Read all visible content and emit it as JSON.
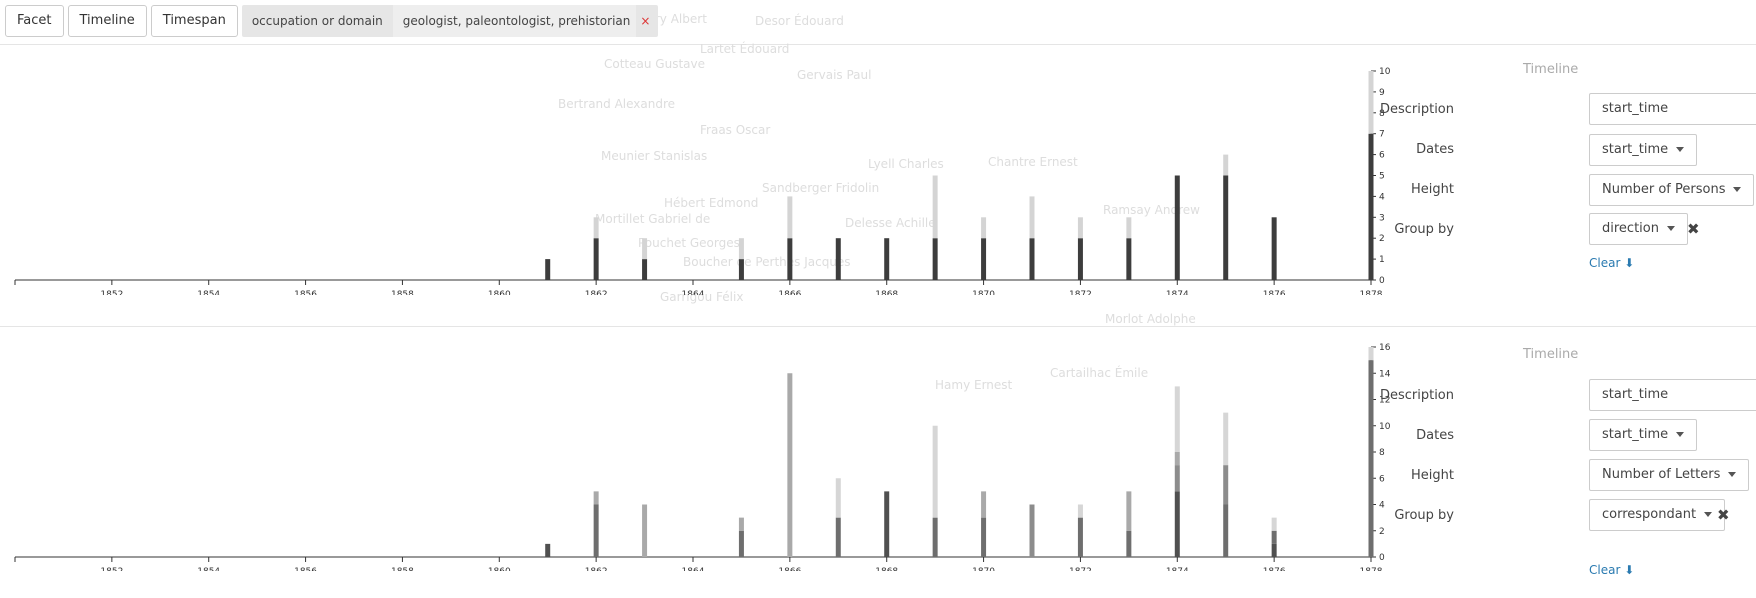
{
  "toolbar": {
    "facet_label": "Facet",
    "timeline_label": "Timeline",
    "timespan_label": "Timespan",
    "filter_key": "occupation or domain",
    "filter_value": "geologist, paleontologist, prehistorian",
    "filter_remove": "×"
  },
  "background_labels": [
    "Gaudry Albert",
    "Desor Édouard",
    "Lartet Édouard",
    "Cotteau Gustave",
    "Gervais Paul",
    "Bertrand Alexandre",
    "Fraas Oscar",
    "Meunier Stanislas",
    "Lyell Charles",
    "Chantre Ernest",
    "Sandberger Fridolin",
    "Hébert Edmond",
    "Mortillet Gabriel de",
    "Delesse Achille",
    "Ramsay Andrew",
    "Pouchet Georges",
    "Boucher de Perthes Jacques",
    "Garrigou Félix",
    "Morlot Adolphe",
    "Cartailhac Émile",
    "Hamy Ernest"
  ],
  "panels": [
    {
      "title": "Timeline",
      "description_label": "Description",
      "description_value": "start_time",
      "dates_label": "Dates",
      "dates_value": "start_time",
      "height_label": "Height",
      "height_value": "Number of Persons",
      "groupby_label": "Group by",
      "groupby_value": "direction",
      "remove_icon": "✖",
      "clear_label": "Clear",
      "clear_icon": "⬇"
    },
    {
      "title": "Timeline",
      "description_label": "Description",
      "description_value": "start_time",
      "dates_label": "Dates",
      "dates_value": "start_time",
      "height_label": "Height",
      "height_value": "Number of Letters",
      "groupby_label": "Group by",
      "groupby_value": "correspondant",
      "remove_icon": "✖",
      "clear_label": "Clear",
      "clear_icon": "⬇"
    }
  ],
  "chart_data": [
    {
      "type": "bar",
      "stacked": true,
      "x_ticks": [
        "1852",
        "1854",
        "1856",
        "1858",
        "1860",
        "1862",
        "1864",
        "1866",
        "1868",
        "1870",
        "1872",
        "1874",
        "1876",
        "1878"
      ],
      "y_ticks": [
        "0",
        "1",
        "2",
        "3",
        "4",
        "5",
        "6",
        "7",
        "8",
        "9",
        "10"
      ],
      "xlim": [
        1850,
        1878
      ],
      "ylim": [
        0,
        10
      ],
      "series_colors": [
        "#3d3d3d",
        "#d4d4d4"
      ],
      "bars": [
        {
          "year": 1861,
          "segments": [
            1,
            0
          ]
        },
        {
          "year": 1862,
          "segments": [
            2,
            1
          ]
        },
        {
          "year": 1863,
          "segments": [
            1,
            1
          ]
        },
        {
          "year": 1865,
          "segments": [
            1,
            1
          ]
        },
        {
          "year": 1866,
          "segments": [
            2,
            2
          ]
        },
        {
          "year": 1867,
          "segments": [
            2,
            0
          ]
        },
        {
          "year": 1868,
          "segments": [
            2,
            0
          ]
        },
        {
          "year": 1869,
          "segments": [
            2,
            3
          ]
        },
        {
          "year": 1870,
          "segments": [
            2,
            1
          ]
        },
        {
          "year": 1871,
          "segments": [
            2,
            2
          ]
        },
        {
          "year": 1872,
          "segments": [
            2,
            1
          ]
        },
        {
          "year": 1873,
          "segments": [
            2,
            1
          ]
        },
        {
          "year": 1874,
          "segments": [
            5,
            0
          ]
        },
        {
          "year": 1875,
          "segments": [
            5,
            1
          ]
        },
        {
          "year": 1876,
          "segments": [
            3,
            0
          ]
        },
        {
          "year": 1878,
          "segments": [
            7,
            3
          ]
        }
      ]
    },
    {
      "type": "bar",
      "stacked": true,
      "x_ticks": [
        "1852",
        "1854",
        "1856",
        "1858",
        "1860",
        "1862",
        "1864",
        "1866",
        "1868",
        "1870",
        "1872",
        "1874",
        "1876",
        "1878"
      ],
      "y_ticks": [
        "0",
        "2",
        "4",
        "6",
        "8",
        "10",
        "12",
        "14",
        "16"
      ],
      "xlim": [
        1850,
        1878
      ],
      "ylim": [
        0,
        16
      ],
      "series_colors": [
        "#505050",
        "#6e6e6e",
        "#8c8c8c",
        "#a9a9a9",
        "#d6d6d6"
      ],
      "bars": [
        {
          "year": 1861,
          "segments": [
            1,
            0,
            0,
            0,
            0
          ]
        },
        {
          "year": 1862,
          "segments": [
            0,
            4,
            0,
            1,
            0
          ]
        },
        {
          "year": 1863,
          "segments": [
            0,
            0,
            0,
            4,
            0
          ]
        },
        {
          "year": 1865,
          "segments": [
            0,
            2,
            0,
            1,
            0
          ]
        },
        {
          "year": 1866,
          "segments": [
            0,
            0,
            0,
            14,
            0
          ]
        },
        {
          "year": 1867,
          "segments": [
            0,
            3,
            0,
            0,
            3
          ]
        },
        {
          "year": 1868,
          "segments": [
            5,
            0,
            0,
            0,
            0
          ]
        },
        {
          "year": 1869,
          "segments": [
            0,
            3,
            0,
            0,
            7
          ]
        },
        {
          "year": 1870,
          "segments": [
            0,
            3,
            0,
            2,
            0
          ]
        },
        {
          "year": 1871,
          "segments": [
            0,
            0,
            4,
            0,
            0
          ]
        },
        {
          "year": 1872,
          "segments": [
            0,
            3,
            0,
            0,
            1
          ]
        },
        {
          "year": 1873,
          "segments": [
            0,
            2,
            0,
            3,
            0
          ]
        },
        {
          "year": 1874,
          "segments": [
            5,
            0,
            2,
            1,
            5
          ]
        },
        {
          "year": 1875,
          "segments": [
            0,
            4,
            3,
            0,
            4
          ]
        },
        {
          "year": 1876,
          "segments": [
            1,
            1,
            0,
            0,
            1
          ]
        },
        {
          "year": 1878,
          "segments": [
            0,
            15,
            0,
            0,
            1
          ]
        }
      ]
    }
  ]
}
